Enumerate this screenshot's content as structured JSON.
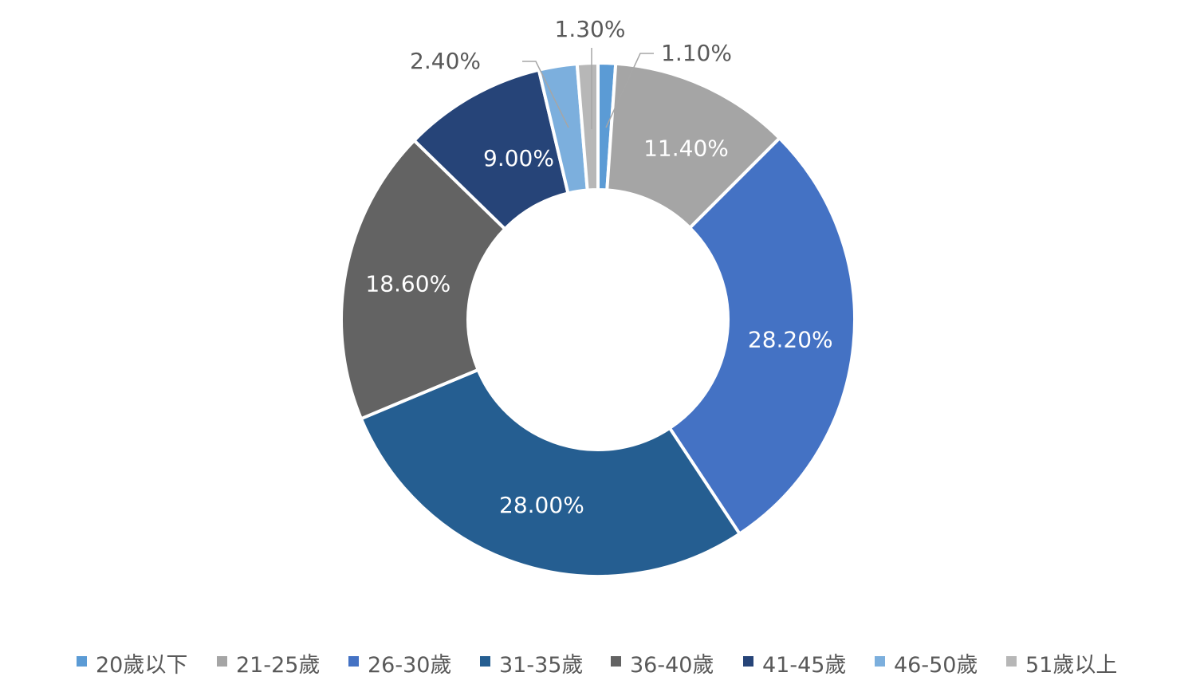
{
  "chart_data": {
    "type": "pie",
    "variant": "donut",
    "title": "",
    "legend_position": "bottom",
    "slices": [
      {
        "label": "20歲以下",
        "value": 1.1,
        "display": "1.10%",
        "color": "#5B9BD5",
        "label_placement": "outside"
      },
      {
        "label": "21-25歲",
        "value": 11.4,
        "display": "11.40%",
        "color": "#A5A5A5",
        "label_placement": "inside"
      },
      {
        "label": "26-30歲",
        "value": 28.2,
        "display": "28.20%",
        "color": "#4472C4",
        "label_placement": "inside"
      },
      {
        "label": "31-35歲",
        "value": 28.0,
        "display": "28.00%",
        "color": "#255E91",
        "label_placement": "inside"
      },
      {
        "label": "36-40歲",
        "value": 18.6,
        "display": "18.60%",
        "color": "#636363",
        "label_placement": "inside"
      },
      {
        "label": "41-45歲",
        "value": 9.0,
        "display": "9.00%",
        "color": "#264478",
        "label_placement": "inside"
      },
      {
        "label": "46-50歲",
        "value": 2.4,
        "display": "2.40%",
        "color": "#7CAFDD",
        "label_placement": "outside"
      },
      {
        "label": "51歲以上",
        "value": 1.3,
        "display": "1.30%",
        "color": "#B7B7B7",
        "label_placement": "outside"
      }
    ]
  }
}
